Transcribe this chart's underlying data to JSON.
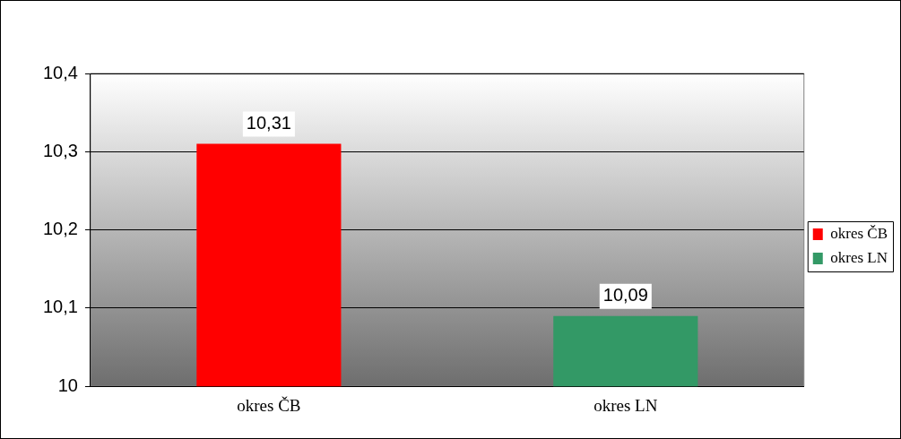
{
  "chart_data": {
    "type": "bar",
    "categories": [
      "okres ČB",
      "okres LN"
    ],
    "series": [
      {
        "name": "okres ČB",
        "color": "#ff0000",
        "values": [
          10.31,
          null
        ],
        "value_labels": [
          "10,31",
          null
        ]
      },
      {
        "name": "okres LN",
        "color": "#339966",
        "values": [
          null,
          10.09
        ],
        "value_labels": [
          null,
          "10,09"
        ]
      }
    ],
    "ylim": [
      10,
      10.4
    ],
    "yticks": [
      10,
      {
        "value": 10.1,
        "label": "10,1"
      },
      {
        "value": 10.2,
        "label": "10,2"
      },
      {
        "value": 10.3,
        "label": "10,3"
      },
      {
        "value": 10.4,
        "label": "10,4"
      }
    ],
    "grid": "y",
    "legend": "right"
  }
}
